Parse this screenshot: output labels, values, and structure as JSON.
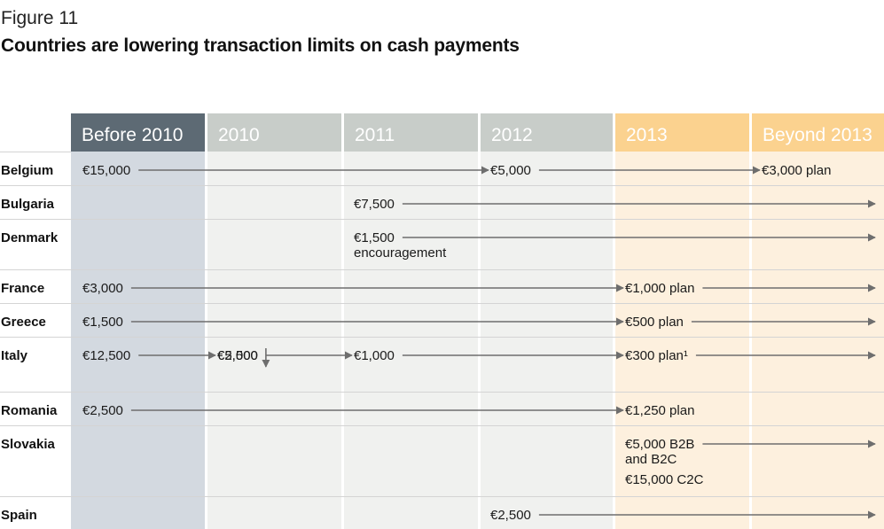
{
  "figure_label": "Figure 11",
  "title": "Countries are lowering transaction limits on cash payments",
  "colors": {
    "header_dark": "#5d6a74",
    "header_gray": "#c8cdc9",
    "header_orange": "#fbd28f",
    "col_before": "#d3d9e0",
    "col_gray": "#f0f1ef",
    "col_orange": "#fdf0de",
    "arrow": "#6e6e6e",
    "row_line": "#d4d4d4"
  },
  "chart_data": {
    "type": "table",
    "columns": [
      "Before 2010",
      "2010",
      "2011",
      "2012",
      "2013",
      "Beyond 2013"
    ],
    "rows": [
      {
        "country": "Belgium",
        "entries": [
          {
            "lines": [
              "€15,000"
            ],
            "col": 0,
            "sub": 0
          },
          {
            "lines": [
              "€5,000"
            ],
            "col": 3,
            "sub": 0
          },
          {
            "lines": [
              "€3,000 plan"
            ],
            "col": 5,
            "sub": 0
          }
        ]
      },
      {
        "country": "Bulgaria",
        "entries": [
          {
            "lines": [
              "€7,500"
            ],
            "col": 2,
            "sub": 0
          }
        ]
      },
      {
        "country": "Denmark",
        "entries": [
          {
            "lines": [
              "€1,500",
              "encouragement"
            ],
            "col": 2,
            "sub": 0
          }
        ]
      },
      {
        "country": "France",
        "entries": [
          {
            "lines": [
              "€3,000"
            ],
            "col": 0,
            "sub": 0
          },
          {
            "lines": [
              "€1,000 plan"
            ],
            "col": 4,
            "sub": 0
          }
        ]
      },
      {
        "country": "Greece",
        "entries": [
          {
            "lines": [
              "€1,500"
            ],
            "col": 0,
            "sub": 0
          },
          {
            "lines": [
              "€500 plan"
            ],
            "col": 4,
            "sub": 0
          }
        ]
      },
      {
        "country": "Italy",
        "entries": [
          {
            "lines": [
              "€12,500"
            ],
            "col": 0,
            "sub": 0
          },
          {
            "lines": [
              "€5,000"
            ],
            "col": 1,
            "sub": 0
          },
          {
            "lines": [
              "€2,500"
            ],
            "col": 1,
            "sub": 1
          },
          {
            "lines": [
              "€1,000"
            ],
            "col": 2,
            "sub": 1
          },
          {
            "lines": [
              "€300 plan¹"
            ],
            "col": 4,
            "sub": 1
          }
        ]
      },
      {
        "country": "Romania",
        "entries": [
          {
            "lines": [
              "€2,500"
            ],
            "col": 0,
            "sub": 0
          },
          {
            "lines": [
              "€1,250 plan"
            ],
            "col": 4,
            "sub": 0
          }
        ]
      },
      {
        "country": "Slovakia",
        "entries": [
          {
            "lines": [
              "€5,000 B2B",
              "and B2C"
            ],
            "col": 4,
            "sub": 0
          },
          {
            "lines": [
              "€15,000 C2C"
            ],
            "col": 4,
            "sub": 1
          }
        ]
      },
      {
        "country": "Spain",
        "entries": [
          {
            "lines": [
              "€2,500"
            ],
            "col": 3,
            "sub": 0
          }
        ]
      }
    ],
    "arrows": [
      {
        "row": 0,
        "from_entry": 0,
        "to_entry": 1
      },
      {
        "row": 0,
        "from_entry": 1,
        "to_entry": 2
      },
      {
        "row": 1,
        "from_entry": 0,
        "to_end": true
      },
      {
        "row": 2,
        "from_entry": 0,
        "to_end": true
      },
      {
        "row": 3,
        "from_entry": 0,
        "to_entry": 1
      },
      {
        "row": 3,
        "from_entry": 1,
        "to_end": true
      },
      {
        "row": 4,
        "from_entry": 0,
        "to_entry": 1
      },
      {
        "row": 4,
        "from_entry": 1,
        "to_end": true
      },
      {
        "row": 5,
        "from_entry": 0,
        "to_entry": 1
      },
      {
        "row": 5,
        "from_entry": 1,
        "down": true
      },
      {
        "row": 5,
        "from_entry": 2,
        "to_entry": 3
      },
      {
        "row": 5,
        "from_entry": 3,
        "to_entry": 4
      },
      {
        "row": 5,
        "from_entry": 4,
        "to_end": true
      },
      {
        "row": 6,
        "from_entry": 0,
        "to_entry": 1
      },
      {
        "row": 7,
        "from_entry": 0,
        "to_end": true
      },
      {
        "row": 8,
        "from_entry": 0,
        "to_end": true
      }
    ]
  }
}
